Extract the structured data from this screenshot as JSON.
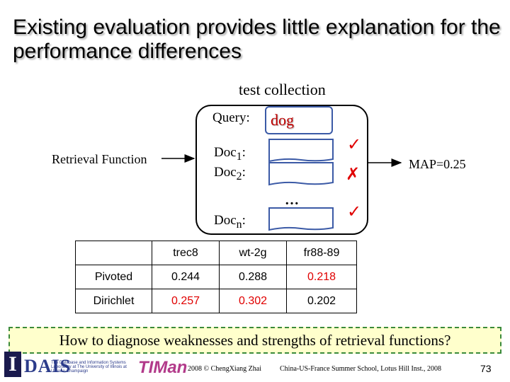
{
  "slide": {
    "title": "Existing evaluation provides little explanation for the performance differences",
    "test_collection_label": "test collection",
    "query_label": "Query:",
    "query_value": "dog",
    "retrieval_function_label": "Retrieval Function",
    "docs": [
      {
        "name": "Doc",
        "sub": "1",
        "suffix": ":",
        "mark": "✓"
      },
      {
        "name": "Doc",
        "sub": "2",
        "suffix": ":",
        "mark": "✗"
      },
      {
        "name": "Doc",
        "sub": "n",
        "suffix": ":",
        "mark": "✓"
      }
    ],
    "ellipsis": "…",
    "map_label": "MAP=0.25",
    "table": {
      "headers": [
        "",
        "trec8",
        "wt-2g",
        "fr88-89"
      ],
      "rows": [
        [
          "Pivoted",
          "0.244",
          "0.288",
          "0.218"
        ],
        [
          "Dirichlet",
          "0.257",
          "0.302",
          "0.202"
        ]
      ]
    },
    "question": "How to diagnose weaknesses and strengths of retrieval functions?"
  },
  "footer": {
    "logo_i": "I",
    "logo_daiss": "DAIS",
    "logo_lab": "The Database and Information Systems Laboratory at The University of Illinois at Urbana-Champaign",
    "logo_timan": "TIMan",
    "center": "2008 © ChengXiang Zhai",
    "right": "China-US-France Summer School, Lotus Hill Inst., 2008",
    "page": "73"
  },
  "colors": {
    "accent_red": "#e00000",
    "box_blue": "#3b5aa6",
    "question_bg": "#ffffcc",
    "question_border": "#3a8a3a"
  }
}
